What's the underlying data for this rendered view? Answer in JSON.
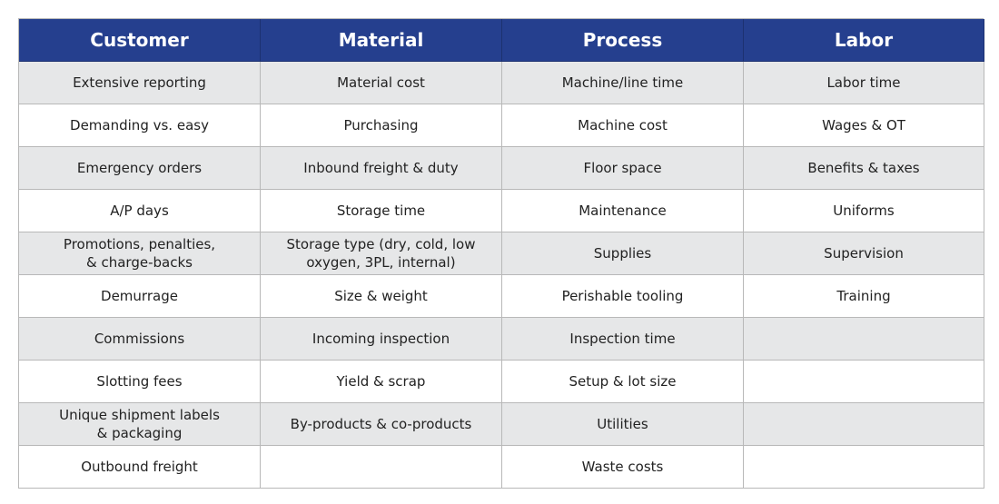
{
  "table": {
    "columns": [
      {
        "header": "Customer",
        "cells": [
          "Extensive reporting",
          "Demanding vs. easy",
          "Emergency orders",
          "A/P days",
          "Promotions, penalties,\n& charge-backs",
          "Demurrage",
          "Commissions",
          "Slotting fees",
          "Unique shipment labels\n& packaging",
          "Outbound freight"
        ]
      },
      {
        "header": "Material",
        "cells": [
          "Material cost",
          "Purchasing",
          "Inbound freight & duty",
          "Storage time",
          "Storage type (dry, cold, low\noxygen, 3PL, internal)",
          "Size & weight",
          "Incoming inspection",
          "Yield & scrap",
          "By-products & co-products"
        ]
      },
      {
        "header": "Process",
        "cells": [
          "Machine/line time",
          "Machine cost",
          "Floor space",
          "Maintenance",
          "Supplies",
          "Perishable tooling",
          "Inspection time",
          "Setup & lot size",
          "Utilities",
          "Waste costs"
        ]
      },
      {
        "header": "Labor",
        "cells": [
          "Labor time",
          "Wages & OT",
          "Benefits & taxes",
          "Uniforms",
          "Supervision",
          "Training"
        ]
      }
    ]
  }
}
